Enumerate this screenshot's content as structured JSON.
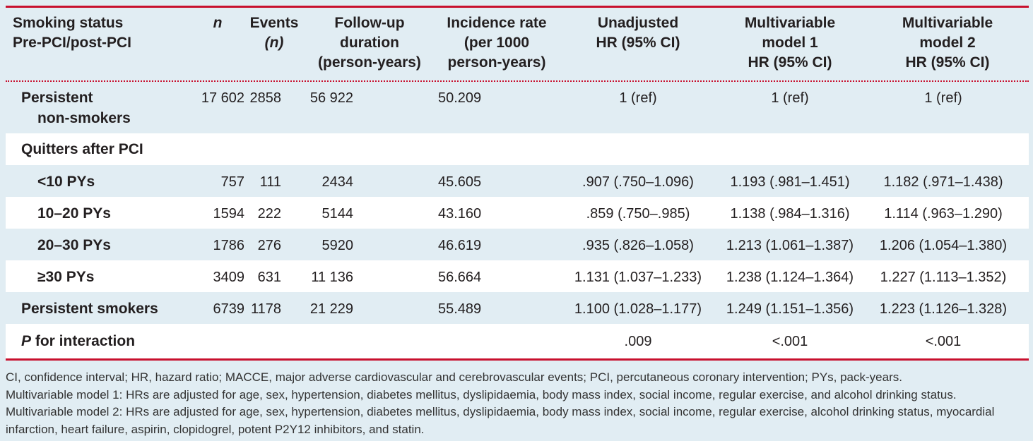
{
  "headers": {
    "col1_line1": "Smoking status",
    "col1_line2": "Pre-PCI/post-PCI",
    "n": "n",
    "events_line1": "Events",
    "events_line2": "(n)",
    "fu_line1": "Follow-up",
    "fu_line2": "duration",
    "fu_line3": "(person-years)",
    "ir_line1": "Incidence rate",
    "ir_line2": "(per 1000",
    "ir_line3": "person-years)",
    "unadj_line1": "Unadjusted",
    "unadj_line2": "HR (95% CI)",
    "m1_line1": "Multivariable",
    "m1_line2": "model 1",
    "m1_line3": "HR (95% CI)",
    "m2_line1": "Multivariable",
    "m2_line2": "model 2",
    "m2_line3": "HR (95% CI)"
  },
  "rows": [
    {
      "label_line1": "Persistent",
      "label_line2": "non-smokers",
      "n": "17 602",
      "events": "2858",
      "followup": "56 922",
      "incidence": "50.209",
      "unadjusted": "1 (ref)",
      "model1": "1 (ref)",
      "model2": "1 (ref)"
    },
    {
      "label_line1": "Quitters after PCI",
      "n": "",
      "events": "",
      "followup": "",
      "incidence": "",
      "unadjusted": "",
      "model1": "",
      "model2": ""
    },
    {
      "label_line1": "<10 PYs",
      "n": "757",
      "events": "111",
      "followup": "2434",
      "incidence": "45.605",
      "unadjusted": ".907 (.750–1.096)",
      "model1": "1.193 (.981–1.451)",
      "model2": "1.182 (.971–1.438)"
    },
    {
      "label_line1": "10–20 PYs",
      "n": "1594",
      "events": "222",
      "followup": "5144",
      "incidence": "43.160",
      "unadjusted": ".859 (.750–.985)",
      "model1": "1.138 (.984–1.316)",
      "model2": "1.114 (.963–1.290)"
    },
    {
      "label_line1": "20–30 PYs",
      "n": "1786",
      "events": "276",
      "followup": "5920",
      "incidence": "46.619",
      "unadjusted": ".935 (.826–1.058)",
      "model1": "1.213 (1.061–1.387)",
      "model2": "1.206 (1.054–1.380)"
    },
    {
      "label_line1": "≥30 PYs",
      "n": "3409",
      "events": "631",
      "followup": "11 136",
      "incidence": "56.664",
      "unadjusted": "1.131 (1.037–1.233)",
      "model1": "1.238 (1.124–1.364)",
      "model2": "1.227 (1.113–1.352)"
    },
    {
      "label_line1": "Persistent smokers",
      "n": "6739",
      "events": "1178",
      "followup": "21 229",
      "incidence": "55.489",
      "unadjusted": "1.100 (1.028–1.177)",
      "model1": "1.249 (1.151–1.356)",
      "model2": "1.223 (1.126–1.328)"
    },
    {
      "label_italic": "P",
      "label_rest": " for interaction",
      "unadjusted": ".009",
      "model1": "<.001",
      "model2": "<.001"
    }
  ],
  "footnotes": [
    "CI, confidence interval; HR, hazard ratio; MACCE, major adverse cardiovascular and cerebrovascular events; PCI, percutaneous coronary intervention; PYs, pack-years.",
    "Multivariable model 1: HRs are adjusted for age, sex, hypertension, diabetes mellitus, dyslipidaemia, body mass index, social income, regular exercise, and alcohol drinking status.",
    "Multivariable model 2: HRs are adjusted for age, sex, hypertension, diabetes mellitus, dyslipidaemia, body mass index, social income, regular exercise, alcohol drinking status, myocardial",
    "infarction, heart failure, aspirin, clopidogrel, potent P2Y12 inhibitors, and statin."
  ],
  "colors": {
    "rule": "#c8102e",
    "band": "#e1edf3",
    "white": "#ffffff"
  }
}
